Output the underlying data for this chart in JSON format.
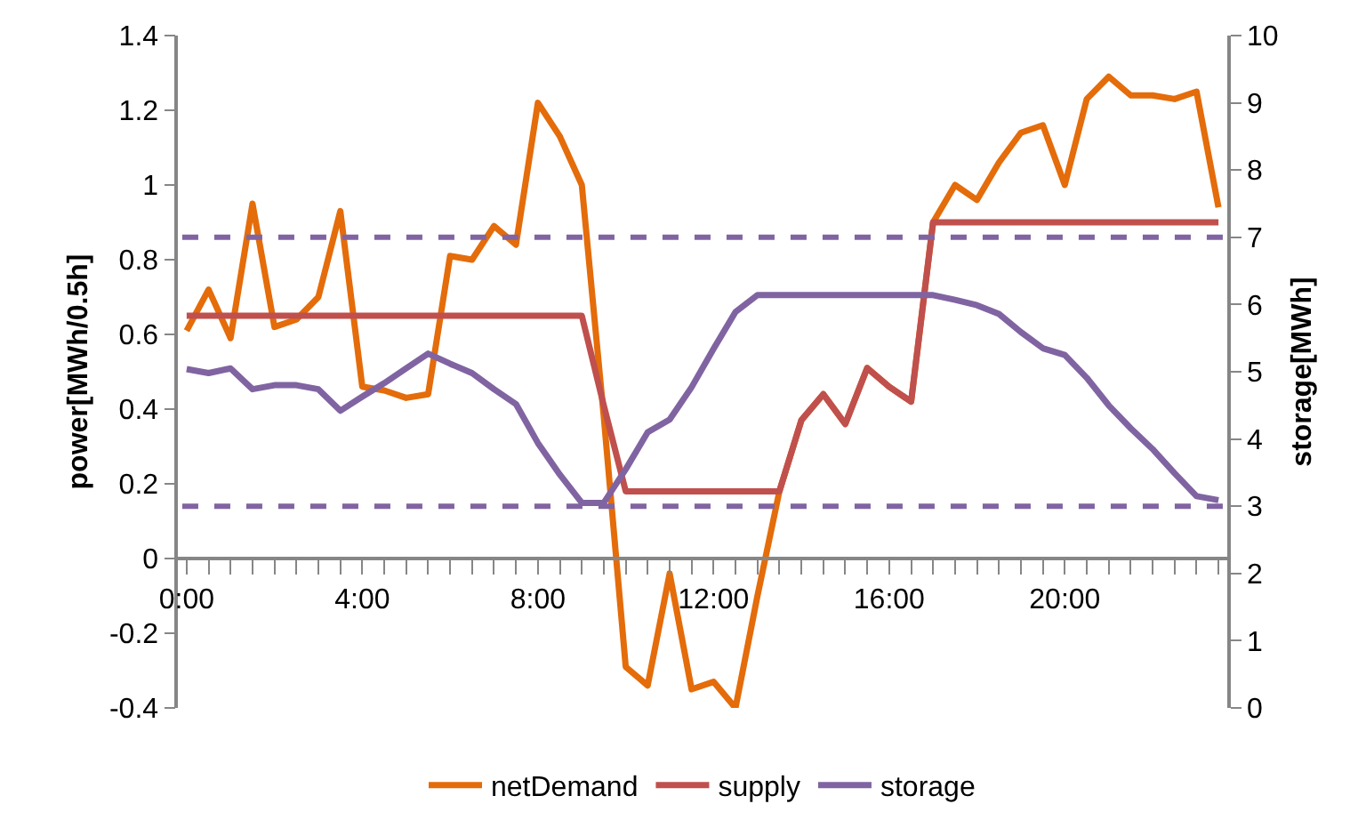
{
  "chart_data": {
    "type": "line",
    "ylabel": "power[MWh/0.5h]",
    "y2label": "storage[MWh]",
    "x": [
      0,
      0.5,
      1,
      1.5,
      2,
      2.5,
      3,
      3.5,
      4,
      4.5,
      5,
      5.5,
      6,
      6.5,
      7,
      7.5,
      8,
      8.5,
      9,
      9.5,
      10,
      10.5,
      11,
      11.5,
      12,
      12.5,
      13,
      13.5,
      14,
      14.5,
      15,
      15.5,
      16,
      16.5,
      17,
      17.5,
      18,
      18.5,
      19,
      19.5,
      20,
      20.5,
      21,
      21.5,
      22,
      22.5,
      23,
      23.5
    ],
    "series": [
      {
        "name": "netDemand",
        "color": "#e46c0a",
        "values": [
          0.61,
          0.72,
          0.59,
          0.95,
          0.62,
          0.64,
          0.7,
          0.93,
          0.46,
          0.45,
          0.43,
          0.44,
          0.81,
          0.8,
          0.89,
          0.84,
          1.22,
          1.13,
          1.0,
          0.38,
          -0.29,
          -0.34,
          -0.04,
          -0.35,
          -0.33,
          -0.4,
          -0.1,
          0.18,
          0.37,
          0.44,
          0.36,
          0.51,
          0.46,
          0.42,
          0.9,
          1.0,
          0.96,
          1.06,
          1.14,
          1.16,
          1.0,
          1.23,
          1.29,
          1.24,
          1.24,
          1.23,
          1.25,
          0.94
        ]
      },
      {
        "name": "supply",
        "color": "#c0504d",
        "values": [
          0.65,
          0.65,
          0.65,
          0.65,
          0.65,
          0.65,
          0.65,
          0.65,
          0.65,
          0.65,
          0.65,
          0.65,
          0.65,
          0.65,
          0.65,
          0.65,
          0.65,
          0.65,
          0.65,
          0.41,
          0.18,
          0.18,
          0.18,
          0.18,
          0.18,
          0.18,
          0.18,
          0.18,
          0.37,
          0.44,
          0.36,
          0.51,
          0.46,
          0.42,
          0.9,
          0.9,
          0.9,
          0.9,
          0.9,
          0.9,
          0.9,
          0.9,
          0.9,
          0.9,
          0.9,
          0.9,
          0.9,
          0.9
        ]
      },
      {
        "name": "storage",
        "color": "#8064a2",
        "axis": "y2",
        "values": [
          5.04,
          4.98,
          5.05,
          4.74,
          4.8,
          4.8,
          4.74,
          4.42,
          4.63,
          4.83,
          5.05,
          5.27,
          5.12,
          4.98,
          4.74,
          4.52,
          3.94,
          3.47,
          3.05,
          3.05,
          3.55,
          4.1,
          4.29,
          4.77,
          5.34,
          5.89,
          6.14,
          6.14,
          6.14,
          6.14,
          6.14,
          6.14,
          6.14,
          6.14,
          6.14,
          6.07,
          5.99,
          5.86,
          5.59,
          5.35,
          5.25,
          4.91,
          4.5,
          4.16,
          3.85,
          3.49,
          3.15,
          3.09
        ]
      }
    ],
    "ref_lines": [
      {
        "axis": "y2",
        "value": 7,
        "color": "#8064a2",
        "line_style": "dashed"
      },
      {
        "axis": "y2",
        "value": 3,
        "color": "#8064a2",
        "line_style": "dashed"
      }
    ],
    "xlim": [
      -0.2,
      23.7
    ],
    "xticks": [
      {
        "value": 0,
        "label": "0:00"
      },
      {
        "value": 4,
        "label": "4:00"
      },
      {
        "value": 8,
        "label": "8:00"
      },
      {
        "value": 12,
        "label": "12:00"
      },
      {
        "value": 16,
        "label": "16:00"
      },
      {
        "value": 20,
        "label": "20:00"
      }
    ],
    "ylim": [
      -0.4,
      1.4
    ],
    "yticks": [
      -0.4,
      -0.2,
      0,
      0.2,
      0.4,
      0.6,
      0.8,
      1,
      1.2,
      1.4
    ],
    "y2lim": [
      0,
      10
    ],
    "y2ticks": [
      0,
      1,
      2,
      3,
      4,
      5,
      6,
      7,
      8,
      9,
      10
    ],
    "legend": "bottom",
    "marker": "none",
    "line_style": "solid"
  }
}
